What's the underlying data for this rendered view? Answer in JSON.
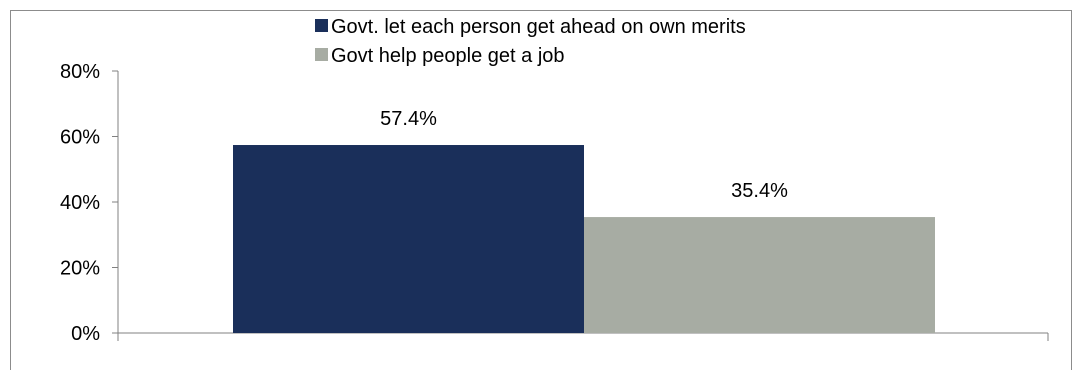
{
  "chart_data": {
    "type": "bar",
    "categories": [
      ""
    ],
    "series": [
      {
        "name": "Govt. let each person get ahead on own merits",
        "values": [
          57.4
        ],
        "color": "#1a2f5a"
      },
      {
        "name": "Govt help people get a job",
        "values": [
          35.4
        ],
        "color": "#a7aca3"
      }
    ],
    "data_labels": [
      "57.4%",
      "35.4%"
    ],
    "yticks": [
      "0%",
      "20%",
      "40%",
      "60%",
      "80%"
    ],
    "ylim": [
      0,
      80
    ],
    "legend_position": "top",
    "grid": false
  }
}
